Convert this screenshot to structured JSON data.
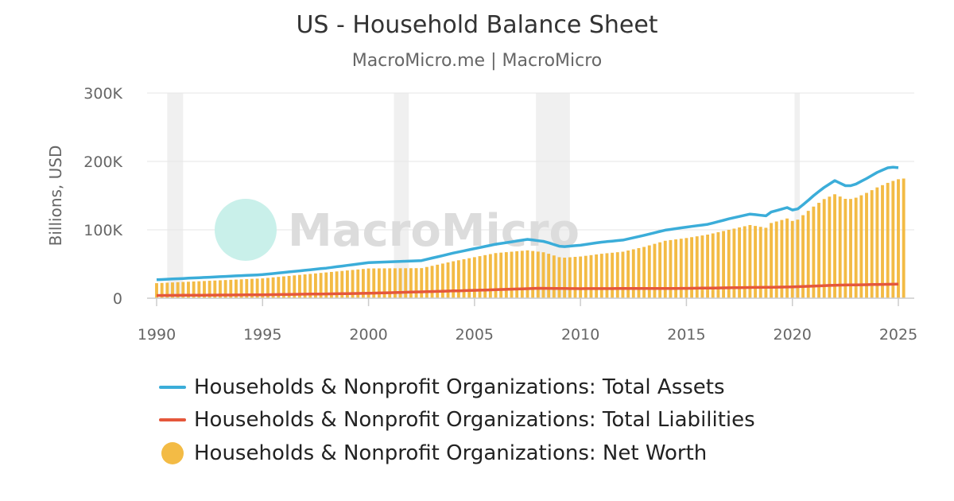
{
  "title": "US - Household Balance Sheet",
  "subtitle": "MacroMicro.me | MacroMicro",
  "watermark": "MacroMicro",
  "colors": {
    "assets": "#3badd9",
    "liabilities": "#e5573b",
    "net_worth": "#f3bb45",
    "recession": "#f0f0f0",
    "grid": "#e6e6e6",
    "watermark_icon": "#c9f0ea"
  },
  "chart_data": {
    "type": "bar+line",
    "title": "US - Household Balance Sheet",
    "subtitle": "MacroMicro.me | MacroMicro",
    "ylabel": "Billions, USD",
    "xlabel": "",
    "ylim": [
      0,
      300000
    ],
    "xlim": [
      1990,
      2025.8
    ],
    "yticks": [
      0,
      100000,
      200000,
      300000
    ],
    "ytick_labels": [
      "0",
      "100K",
      "200K",
      "300K"
    ],
    "xticks": [
      1990,
      1995,
      2000,
      2005,
      2010,
      2015,
      2020,
      2025
    ],
    "xtick_labels": [
      "1990",
      "1995",
      "2000",
      "2005",
      "2010",
      "2015",
      "2020",
      "2025"
    ],
    "grid": true,
    "legend_position": "bottom",
    "recession_periods": [
      [
        1990.5,
        1991.25
      ],
      [
        2001.2,
        2001.9
      ],
      [
        2007.9,
        2009.5
      ],
      [
        2020.1,
        2020.35
      ]
    ],
    "frequency": "quarterly",
    "start": 1990.0,
    "series": [
      {
        "name": "Households & Nonprofit Organizations: Total Assets",
        "type": "line",
        "anchors": [
          [
            1990,
            27000
          ],
          [
            1995,
            34500
          ],
          [
            1998,
            44000
          ],
          [
            2000,
            52000
          ],
          [
            2002.5,
            55000
          ],
          [
            2004,
            66000
          ],
          [
            2006,
            79000
          ],
          [
            2007.5,
            86000
          ],
          [
            2008.3,
            83000
          ],
          [
            2009.1,
            75000
          ],
          [
            2010,
            77500
          ],
          [
            2011,
            82000
          ],
          [
            2012,
            85000
          ],
          [
            2013,
            92000
          ],
          [
            2014,
            99500
          ],
          [
            2015,
            104000
          ],
          [
            2016,
            108000
          ],
          [
            2017,
            116000
          ],
          [
            2018,
            123000
          ],
          [
            2018.75,
            120500
          ],
          [
            2019,
            126000
          ],
          [
            2019.8,
            133000
          ],
          [
            2020.1,
            127000
          ],
          [
            2020.6,
            139000
          ],
          [
            2021,
            150000
          ],
          [
            2021.5,
            162000
          ],
          [
            2022,
            172000
          ],
          [
            2022.6,
            163000
          ],
          [
            2023,
            167000
          ],
          [
            2023.5,
            175000
          ],
          [
            2024,
            184000
          ],
          [
            2024.6,
            192000
          ],
          [
            2025.1,
            190500
          ]
        ]
      },
      {
        "name": "Households & Nonprofit Organizations: Total Liabilities",
        "type": "line",
        "anchors": [
          [
            1990,
            4000
          ],
          [
            1995,
            5000
          ],
          [
            2000,
            7200
          ],
          [
            2005,
            11500
          ],
          [
            2008,
            14500
          ],
          [
            2010,
            14000
          ],
          [
            2015,
            14400
          ],
          [
            2020,
            16500
          ],
          [
            2022,
            19000
          ],
          [
            2025.1,
            20700
          ]
        ]
      },
      {
        "name": "Households & Nonprofit Organizations: Net Worth",
        "type": "bar",
        "anchors": [
          [
            1990,
            22000
          ],
          [
            1995,
            29000
          ],
          [
            2000,
            43500
          ],
          [
            2002.5,
            44000
          ],
          [
            2004,
            54000
          ],
          [
            2006,
            66000
          ],
          [
            2007.5,
            70000
          ],
          [
            2008.3,
            67000
          ],
          [
            2009.1,
            59000
          ],
          [
            2010,
            61000
          ],
          [
            2011,
            65000
          ],
          [
            2012,
            68000
          ],
          [
            2013,
            75000
          ],
          [
            2014,
            84000
          ],
          [
            2015,
            88000
          ],
          [
            2016,
            93000
          ],
          [
            2017,
            100000
          ],
          [
            2018,
            107000
          ],
          [
            2018.75,
            103000
          ],
          [
            2019,
            110000
          ],
          [
            2019.8,
            117000
          ],
          [
            2020.1,
            111000
          ],
          [
            2020.6,
            124000
          ],
          [
            2021,
            134000
          ],
          [
            2021.5,
            145000
          ],
          [
            2022,
            152000
          ],
          [
            2022.6,
            144000
          ],
          [
            2023,
            147000
          ],
          [
            2023.5,
            154000
          ],
          [
            2024,
            162000
          ],
          [
            2024.6,
            170000
          ],
          [
            2025.1,
            175000
          ]
        ]
      }
    ]
  }
}
